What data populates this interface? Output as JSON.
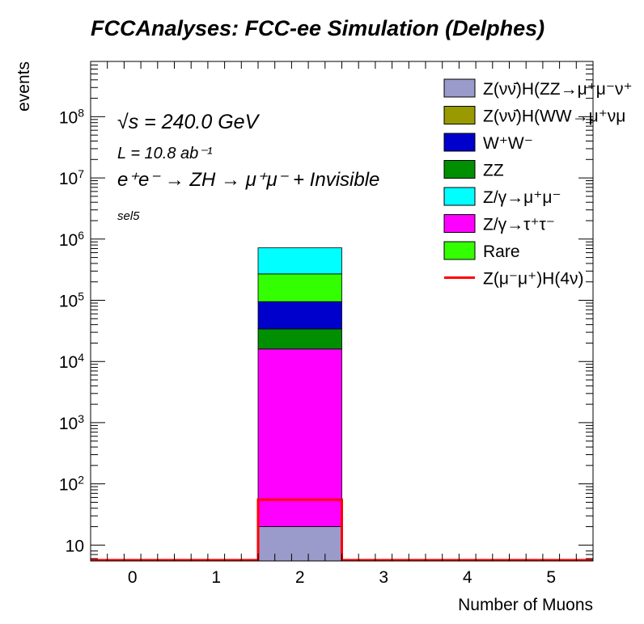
{
  "title": "FCCAnalyses: FCC-ee Simulation (Delphes)",
  "chart_data": {
    "type": "bar",
    "stacked": true,
    "yscale": "log",
    "xlabel": "Number of Muons",
    "ylabel": "events",
    "xlim": [
      -0.5,
      5.5
    ],
    "ylim": [
      5.5,
      800000000.0
    ],
    "x_ticks": [
      "0",
      "1",
      "2",
      "3",
      "4",
      "5"
    ],
    "y_ticks": [
      {
        "value": 10,
        "base": "10",
        "exp": ""
      },
      {
        "value": 100,
        "base": "10",
        "exp": "2"
      },
      {
        "value": 1000,
        "base": "10",
        "exp": "3"
      },
      {
        "value": 10000,
        "base": "10",
        "exp": "4"
      },
      {
        "value": 100000,
        "base": "10",
        "exp": "5"
      },
      {
        "value": 1000000,
        "base": "10",
        "exp": "6"
      },
      {
        "value": 10000000,
        "base": "10",
        "exp": "7"
      },
      {
        "value": 100000000,
        "base": "10",
        "exp": "8"
      }
    ],
    "bin": {
      "low": 1.5,
      "high": 2.5,
      "center": 2
    },
    "stack": [
      {
        "name": "Z(νν̄)H(ZZ→μ⁺μ⁻ν⁺",
        "color": "#9a9acb",
        "cumulative": 20
      },
      {
        "name": "Z/γ→τ⁺τ⁻",
        "color": "#ff00ff",
        "cumulative": 16000
      },
      {
        "name": "ZZ",
        "color": "#008f00",
        "cumulative": 34000
      },
      {
        "name": "W⁺W⁻",
        "color": "#0000cc",
        "cumulative": 95000
      },
      {
        "name": "Rare",
        "color": "#33ff00",
        "cumulative": 270000
      },
      {
        "name": "Z/γ→μ⁺μ⁻",
        "color": "#00ffff",
        "cumulative": 720000
      }
    ],
    "signal": {
      "name": "Z(μ⁻μ⁺)H(4ν)",
      "color": "#ff0000",
      "value": 55
    },
    "legend": [
      {
        "label": "Z(νν̄)H(ZZ→μ⁺μ⁻ν⁺",
        "color": "#9a9acb",
        "style": "box"
      },
      {
        "label": "Z(νν̄)H(WW→μ⁺νμ",
        "color": "#999900",
        "style": "box"
      },
      {
        "label": "W⁺W⁻",
        "color": "#0000cc",
        "style": "box"
      },
      {
        "label": "ZZ",
        "color": "#008f00",
        "style": "box"
      },
      {
        "label": "Z/γ→μ⁺μ⁻",
        "color": "#00ffff",
        "style": "box"
      },
      {
        "label": "Z/γ→τ⁺τ⁻",
        "color": "#ff00ff",
        "style": "box"
      },
      {
        "label": "Rare",
        "color": "#33ff00",
        "style": "box"
      },
      {
        "label": "Z(μ⁻μ⁺)H(4ν)",
        "color": "#ff0000",
        "style": "line"
      }
    ],
    "legend_position": "top-right",
    "annotations": {
      "energy": "√s = 240.0 GeV",
      "lumi": "L = 10.8 ab⁻¹",
      "process": "e⁺e⁻ → ZH → μ⁺μ⁻ + Invisible",
      "selection": "sel5"
    }
  }
}
